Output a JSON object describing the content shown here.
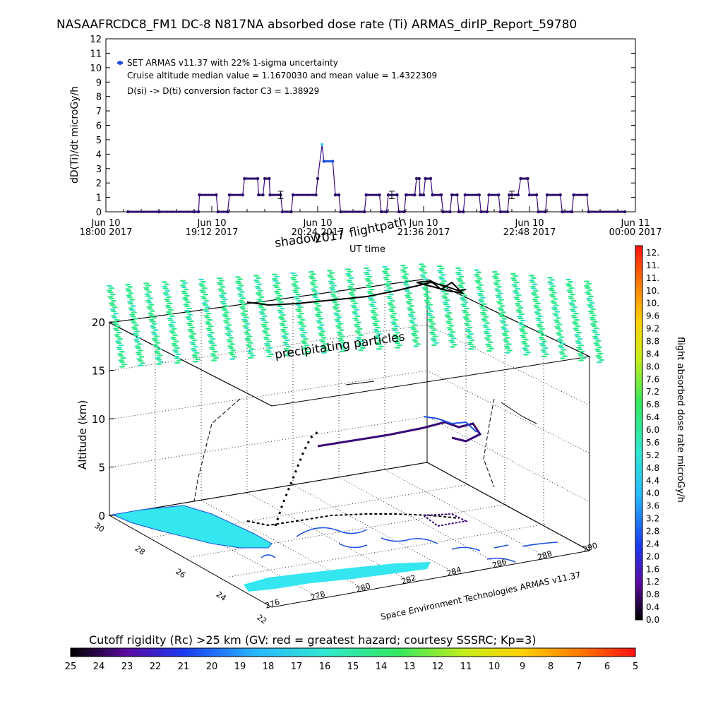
{
  "header": {
    "title": "NASAAFRCDC8_FM1 DC-8   N817NA absorbed dose rate (Ti) ARMAS_dirIP_Report_59780"
  },
  "chart_data": [
    {
      "type": "line",
      "legend": [
        "SET ARMAS v11.37 with 22% 1-sigma uncertainty",
        "Cruise altitude median value = 1.1670030 and mean value = 1.4322309",
        "D(si) -> D(ti) conversion factor C3 = 1.38929"
      ],
      "ylabel": "dD(Ti)/dt microGy/h",
      "xlabel": "UT time",
      "ylim": [
        0,
        12
      ],
      "yticks": [
        "0",
        "1",
        "2",
        "3",
        "4",
        "5",
        "6",
        "7",
        "8",
        "9",
        "10",
        "11",
        "12"
      ],
      "xticks": [
        {
          "top": "Jun 10",
          "bottom": "18:00 2017"
        },
        {
          "top": "Jun 10",
          "bottom": "19:12 2017"
        },
        {
          "top": "Jun 10",
          "bottom": "20:24 2017"
        },
        {
          "top": "Jun 10",
          "bottom": "21:36 2017"
        },
        {
          "top": "Jun 10",
          "bottom": "22:48 2017"
        },
        {
          "top": "Jun 11",
          "bottom": "00:00 2017"
        }
      ],
      "x_hours": [
        18.0,
        24.0
      ],
      "series": [
        {
          "points": [
            [
              18.25,
              0
            ],
            [
              18.6,
              0
            ],
            [
              19.0,
              0
            ],
            [
              19.05,
              0
            ],
            [
              19.06,
              1.17
            ],
            [
              19.25,
              1.17
            ],
            [
              19.27,
              0
            ],
            [
              19.38,
              0
            ],
            [
              19.4,
              1.17
            ],
            [
              19.55,
              1.17
            ],
            [
              19.57,
              2.3
            ],
            [
              19.72,
              2.3
            ],
            [
              19.73,
              1.17
            ],
            [
              19.78,
              1.17
            ],
            [
              19.8,
              2.3
            ],
            [
              19.85,
              2.3
            ],
            [
              19.86,
              1.17
            ],
            [
              19.98,
              1.17
            ],
            [
              20.0,
              0
            ],
            [
              20.1,
              0
            ],
            [
              20.12,
              1.17
            ],
            [
              20.38,
              1.17
            ],
            [
              20.4,
              2.3
            ],
            [
              20.45,
              4.67
            ],
            [
              20.47,
              3.5
            ],
            [
              20.57,
              3.5
            ],
            [
              20.6,
              1.17
            ],
            [
              20.64,
              1.17
            ],
            [
              20.66,
              0
            ],
            [
              20.93,
              0
            ],
            [
              20.95,
              1.17
            ],
            [
              21.1,
              1.17
            ],
            [
              21.12,
              0
            ],
            [
              21.18,
              0
            ],
            [
              21.2,
              1.17
            ],
            [
              21.3,
              1.17
            ],
            [
              21.32,
              0
            ],
            [
              21.38,
              0
            ],
            [
              21.4,
              1.17
            ],
            [
              21.5,
              1.17
            ],
            [
              21.52,
              2.3
            ],
            [
              21.55,
              2.3
            ],
            [
              21.56,
              1.17
            ],
            [
              21.6,
              1.17
            ],
            [
              21.62,
              2.3
            ],
            [
              21.68,
              2.3
            ],
            [
              21.7,
              1.17
            ],
            [
              21.8,
              1.17
            ],
            [
              21.82,
              0
            ],
            [
              21.9,
              0
            ],
            [
              21.92,
              1.17
            ],
            [
              21.98,
              1.17
            ],
            [
              22.0,
              0
            ],
            [
              22.05,
              0
            ],
            [
              22.07,
              1.17
            ],
            [
              22.23,
              1.17
            ],
            [
              22.25,
              0
            ],
            [
              22.32,
              0
            ],
            [
              22.34,
              1.17
            ],
            [
              22.45,
              1.17
            ],
            [
              22.47,
              0
            ],
            [
              22.55,
              0
            ],
            [
              22.57,
              1.17
            ],
            [
              22.67,
              1.17
            ],
            [
              22.7,
              2.3
            ],
            [
              22.78,
              2.3
            ],
            [
              22.8,
              1.17
            ],
            [
              22.88,
              1.17
            ],
            [
              22.9,
              0
            ],
            [
              22.98,
              0
            ],
            [
              23.0,
              1.17
            ],
            [
              23.15,
              1.17
            ],
            [
              23.17,
              0
            ],
            [
              23.28,
              0
            ],
            [
              23.3,
              1.17
            ],
            [
              23.45,
              1.17
            ],
            [
              23.47,
              0
            ],
            [
              23.88,
              0
            ]
          ]
        }
      ],
      "error_bars": [
        {
          "x": 19.98,
          "y": 1.17
        },
        {
          "x": 21.24,
          "y": 1.17
        },
        {
          "x": 22.6,
          "y": 1.17
        }
      ]
    },
    {
      "type": "scatter",
      "ylabel": "Altitude (km)",
      "zticks": [
        "0",
        "5",
        "10",
        "15",
        "20"
      ],
      "lat_ticks": [
        "30",
        "28",
        "26",
        "24",
        "22"
      ],
      "lon_ticks": [
        "276",
        "278",
        "280",
        "282",
        "284",
        "286",
        "288",
        "290"
      ],
      "annotations": [
        "shadow",
        "2017",
        "flightpath",
        "precipitating particles"
      ],
      "credit": "Space Environment Technologies ARMAS v11.37"
    }
  ],
  "colorbar_right": {
    "title": "flight absorbed dose rate microGy/h",
    "labels": [
      "12.",
      "11.",
      "11.",
      "10.",
      "10.",
      "9.6",
      "9.2",
      "8.8",
      "8.4",
      "8.0",
      "7.6",
      "7.2",
      "6.8",
      "6.4",
      "6.0",
      "5.6",
      "5.2",
      "4.8",
      "4.4",
      "4.0",
      "3.6",
      "3.2",
      "2.8",
      "2.4",
      "2.0",
      "1.6",
      "1.2",
      "0.8",
      "0.4",
      "0.0"
    ]
  },
  "colorbar_bottom": {
    "title": "Cutoff rigidity (Rc) >25 km (GV: red = greatest hazard; courtesy SSSRC; Kp=3)",
    "labels": [
      "25",
      "24",
      "23",
      "22",
      "21",
      "20",
      "19",
      "18",
      "17",
      "16",
      "15",
      "14",
      "13",
      "12",
      "11",
      "10",
      "9",
      "8",
      "7",
      "6",
      "5"
    ]
  },
  "colors": {
    "series": "#3a0a7a",
    "marker_dark": "#2b0a6a",
    "marker_blue": "#1a4fe0",
    "peak": "#33d6e8",
    "land": "#33e6f0",
    "particles": "#2ee88a"
  }
}
